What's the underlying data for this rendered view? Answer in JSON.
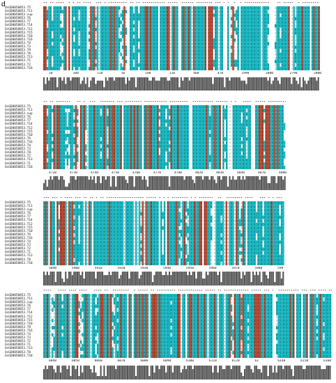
{
  "panel_label": "d",
  "colors": {
    "teal": "#19b5bf",
    "rust": "#b4452f",
    "white": "#ffffff",
    "gray": "#555555"
  },
  "blocks": [
    {
      "names": [
        "OsGD0058853.T5",
        "OsGD0058853.T11",
        "OsGD0058853.sup",
        "OsGD0058853.T6",
        "OsGD0058853.T7",
        "OsGD0058853.T14",
        "OsGD0058853.T12",
        "OsGD0058853.T15",
        "OsGD0058853.T10",
        "OsGD0058853.T16",
        "OsGD0058853.T4",
        "OsGD0058853.T3",
        "OsGD0058853.T9",
        "OsGD0058853.T8",
        "OsGD0058853.T13",
        "OsGD0058853.T1",
        "OsGD0058853.T2",
        "OsGD0058853.T18"
      ],
      "ticks": [
        "10",
        "100",
        "110",
        "10",
        "100",
        "110",
        "460",
        "470",
        "1990",
        "2000",
        "2790",
        "2800"
      ]
    },
    {
      "names": [
        "OsGD0058853.T5",
        "OsGD0058853.T11",
        "OsGD0058853.sup",
        "OsGD0058853.T6",
        "OsGD0058853.T7",
        "OsGD0058853.T14",
        "OsGD0058853.T12",
        "OsGD0058853.T15",
        "OsGD0058853.T10",
        "OsGD0058853.T9",
        "OsGD0058853.T16",
        "OsGD0058853.T4",
        "OsGD0058853.T3",
        "OsGD0058853.T8",
        "OsGD0058853.T2",
        "OsGD0058853.T13",
        "OsGD0058853.T1",
        "OsGD0058853.T18"
      ],
      "ticks": [
        "4720",
        "4730",
        "4740",
        "4750",
        "4760",
        "4770",
        "4780",
        "4820",
        "4830",
        "4840",
        "4870",
        "4880"
      ]
    },
    {
      "names": [
        "OsGD0058853.T5",
        "OsGD0058853.T11",
        "OsGD0058853.sup",
        "OsGD0058853.T6",
        "OsGD0058853.T7",
        "OsGD0058853.T14",
        "OsGD0058853.T12",
        "OsGD0058853.T15",
        "OsGD0058853.T10",
        "OsGD0058853.T9",
        "OsGD0058853.T16",
        "OsGD0058853.T4",
        "OsGD0058853.T3",
        "OsGD0058853.T2",
        "OsGD0058853.T1",
        "OsGD0058853.T13",
        "OsGD0058853.T8",
        "OsGD0058853.T18"
      ],
      "ticks": [
        "5890",
        "5900",
        "5910",
        "5920",
        "5930",
        "5940",
        "5950",
        "5960",
        "5970",
        "5980",
        "599"
      ]
    },
    {
      "names": [
        "OsGD0058853.T5",
        "OsGD0058853.T11",
        "OsGD0058853.sup",
        "OsGD0058853.T6",
        "OsGD0058853.T7",
        "OsGD0058853.T14",
        "OsGD0058853.T12",
        "OsGD0058853.T15",
        "OsGD0058853.T10",
        "OsGD0058853.T9",
        "OsGD0058853.T16",
        "OsGD0058853.T4",
        "OsGD0058853.T3",
        "OsGD0058853.T2",
        "OsGD0058853.T1",
        "OsGD0058853.T13",
        "OsGD0058853.T8",
        "OsGD0058853.T18"
      ],
      "ticks": [
        "6040",
        "6050",
        "6060",
        "6070",
        "6080",
        "6090",
        "6100",
        "6110",
        "6120",
        "61",
        "6140",
        "6150",
        "6160"
      ]
    }
  ]
}
